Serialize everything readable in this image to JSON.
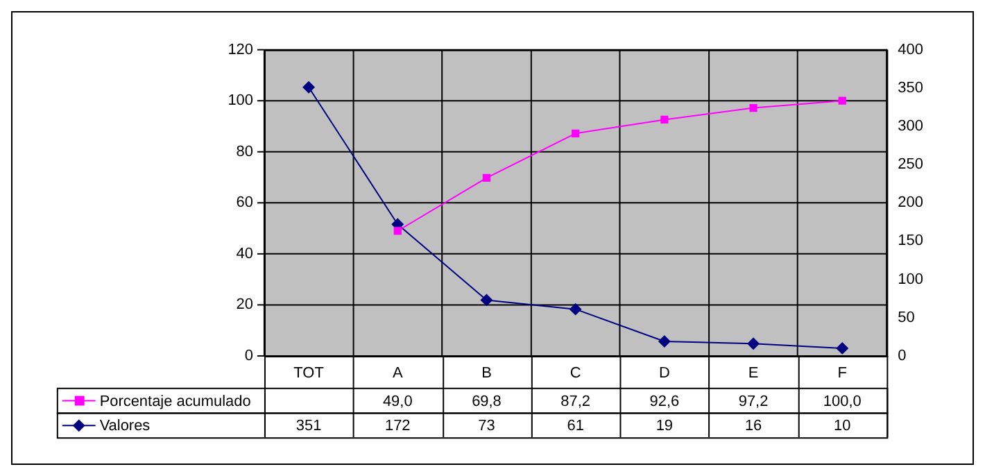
{
  "chart_data": {
    "type": "line",
    "categories": [
      "TOT",
      "A",
      "B",
      "C",
      "D",
      "E",
      "F"
    ],
    "series": [
      {
        "name": "Porcentaje acumulado",
        "color": "#ff00ff",
        "marker": "square",
        "values": [
          null,
          49.0,
          69.8,
          87.2,
          92.6,
          97.2,
          100.0
        ],
        "value_labels": [
          null,
          "49,0",
          "69,8",
          "87,2",
          "92,6",
          "97,2",
          "100,0"
        ]
      },
      {
        "name": "Valores",
        "color": "#000080",
        "marker": "diamond",
        "axis": "y2",
        "values": [
          351,
          172,
          73,
          61,
          19,
          16,
          10
        ],
        "value_labels": [
          "351",
          "172",
          "73",
          "61",
          "19",
          "16",
          "10"
        ]
      }
    ],
    "ylim": [
      0,
      120
    ],
    "yticks": [
      0,
      20,
      40,
      60,
      80,
      100,
      120
    ],
    "y2lim": [
      0,
      400
    ],
    "y2ticks": [
      0,
      50,
      100,
      150,
      200,
      250,
      300,
      350,
      400
    ],
    "grid": true,
    "legend": "bottom left"
  }
}
